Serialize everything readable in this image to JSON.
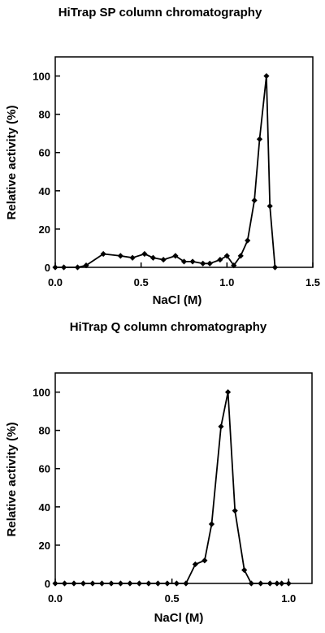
{
  "colors": {
    "ink": "#000000",
    "background": "#ffffff"
  },
  "chart_data": [
    {
      "type": "line",
      "title": "HiTrap SP column chromatography",
      "xlabel": "NaCl   (M)",
      "ylabel": "Relative activity (%)",
      "xlim": [
        0,
        1.5
      ],
      "ylim": [
        0,
        110
      ],
      "xticks": [
        "0.0",
        "0.5",
        "1.0",
        "1.5"
      ],
      "yticks": [
        "0",
        "20",
        "40",
        "60",
        "80",
        "100"
      ],
      "marker": "diamond",
      "grid": false,
      "series": [
        {
          "x": [
            0.0,
            0.05,
            0.13,
            0.18,
            0.28,
            0.38,
            0.45,
            0.52,
            0.57,
            0.63,
            0.7,
            0.75,
            0.8,
            0.86,
            0.9,
            0.96,
            1.0,
            1.04,
            1.08,
            1.12,
            1.16,
            1.19,
            1.23,
            1.25,
            1.28
          ],
          "y": [
            0,
            0,
            0,
            1,
            7,
            6,
            5,
            7,
            5,
            4,
            6,
            3,
            3,
            2,
            2,
            4,
            6,
            1,
            6,
            14,
            35,
            67,
            100,
            32,
            0
          ]
        }
      ]
    },
    {
      "type": "line",
      "title": "HiTrap Q column chromatography",
      "xlabel": "NaCl   (M)",
      "ylabel": "Relative activity (%)",
      "xlim": [
        0,
        1.1
      ],
      "ylim": [
        0,
        110
      ],
      "xticks": [
        "0.0",
        "0.5",
        "1.0"
      ],
      "yticks": [
        "0",
        "20",
        "40",
        "60",
        "80",
        "100"
      ],
      "marker": "diamond",
      "grid": false,
      "series": [
        {
          "x": [
            0.0,
            0.04,
            0.08,
            0.12,
            0.16,
            0.2,
            0.24,
            0.28,
            0.32,
            0.36,
            0.4,
            0.44,
            0.48,
            0.52,
            0.56,
            0.6,
            0.64,
            0.67,
            0.71,
            0.74,
            0.77,
            0.81,
            0.84,
            0.88,
            0.92,
            0.95,
            0.97,
            1.0
          ],
          "y": [
            0,
            0,
            0,
            0,
            0,
            0,
            0,
            0,
            0,
            0,
            0,
            0,
            0,
            0,
            0,
            10,
            12,
            31,
            82,
            100,
            38,
            7,
            0,
            0,
            0,
            0,
            0,
            0
          ]
        }
      ]
    }
  ]
}
